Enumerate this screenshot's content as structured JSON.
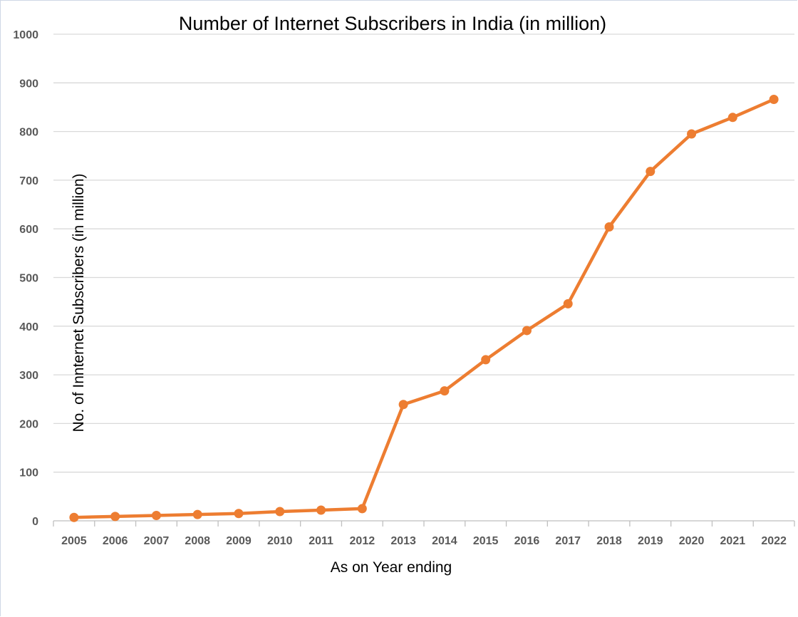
{
  "chart_data": {
    "type": "line",
    "title": "Number of Internet Subscribers in India (in million)",
    "xlabel": "As on Year ending",
    "ylabel": "No. of Innternet  Subscribers (in million)",
    "ylim": [
      0,
      1000
    ],
    "yticks": [
      0,
      100,
      200,
      300,
      400,
      500,
      600,
      700,
      800,
      900,
      1000
    ],
    "grid": true,
    "legend": "none",
    "categories": [
      "2005",
      "2006",
      "2007",
      "2008",
      "2009",
      "2010",
      "2011",
      "2012",
      "2013",
      "2014",
      "2015",
      "2016",
      "2017",
      "2018",
      "2019",
      "2020",
      "2021",
      "2022"
    ],
    "series": [
      {
        "color": "#ED7D31",
        "values": [
          7,
          9,
          11,
          13,
          15,
          19,
          22,
          25,
          239,
          267,
          331,
          391,
          446,
          604,
          718,
          795,
          829,
          866
        ]
      }
    ]
  }
}
